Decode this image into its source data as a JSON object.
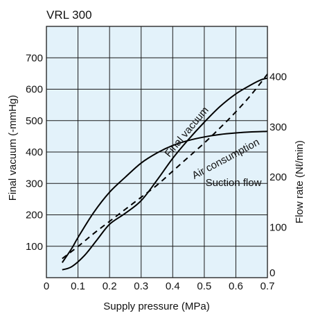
{
  "colors": {
    "plot_background": "#e3f2fa",
    "grid": "#1a1a1a",
    "line": "#000000"
  },
  "chart_data": {
    "type": "line",
    "title": "VRL 300",
    "xlabel": "Supply pressure (MPa)",
    "ylabel": "Final vacuum (-mmHg)",
    "y2label": "Flow rate (Nℓ/min)",
    "xlim": [
      0,
      0.7
    ],
    "ylim": [
      0,
      800
    ],
    "y2lim": [
      0,
      500
    ],
    "x_ticks": [
      "0",
      "0.1",
      "0.2",
      "0.3",
      "0.4",
      "0.5",
      "0.6",
      "0.7"
    ],
    "y_ticks": [
      "100",
      "200",
      "300",
      "400",
      "500",
      "600",
      "700"
    ],
    "y2_ticks": [
      "0",
      "100",
      "200",
      "300",
      "400"
    ],
    "grid": true,
    "series": [
      {
        "name": "Final vacuum",
        "axis": "left",
        "style": "solid",
        "x": [
          0.05,
          0.08,
          0.12,
          0.16,
          0.2,
          0.25,
          0.3,
          0.35,
          0.4,
          0.45,
          0.5,
          0.55,
          0.6,
          0.65,
          0.68,
          0.7
        ],
        "y": [
          25,
          35,
          70,
          120,
          170,
          205,
          245,
          310,
          380,
          440,
          495,
          545,
          585,
          615,
          630,
          635
        ]
      },
      {
        "name": "Air consumption",
        "axis": "right",
        "style": "dashed",
        "x": [
          0.05,
          0.1,
          0.15,
          0.2,
          0.25,
          0.3,
          0.35,
          0.4,
          0.45,
          0.5,
          0.55,
          0.6,
          0.65,
          0.7
        ],
        "y": [
          38,
          62,
          88,
          112,
          136,
          160,
          184,
          212,
          240,
          268,
          298,
          330,
          365,
          405
        ]
      },
      {
        "name": "Suction flow",
        "axis": "right",
        "style": "solid",
        "x": [
          0.05,
          0.08,
          0.1,
          0.15,
          0.2,
          0.25,
          0.3,
          0.35,
          0.4,
          0.45,
          0.5,
          0.55,
          0.6,
          0.65,
          0.7
        ],
        "y": [
          30,
          58,
          80,
          130,
          170,
          200,
          228,
          248,
          263,
          273,
          280,
          285,
          288,
          290,
          291
        ]
      }
    ]
  }
}
